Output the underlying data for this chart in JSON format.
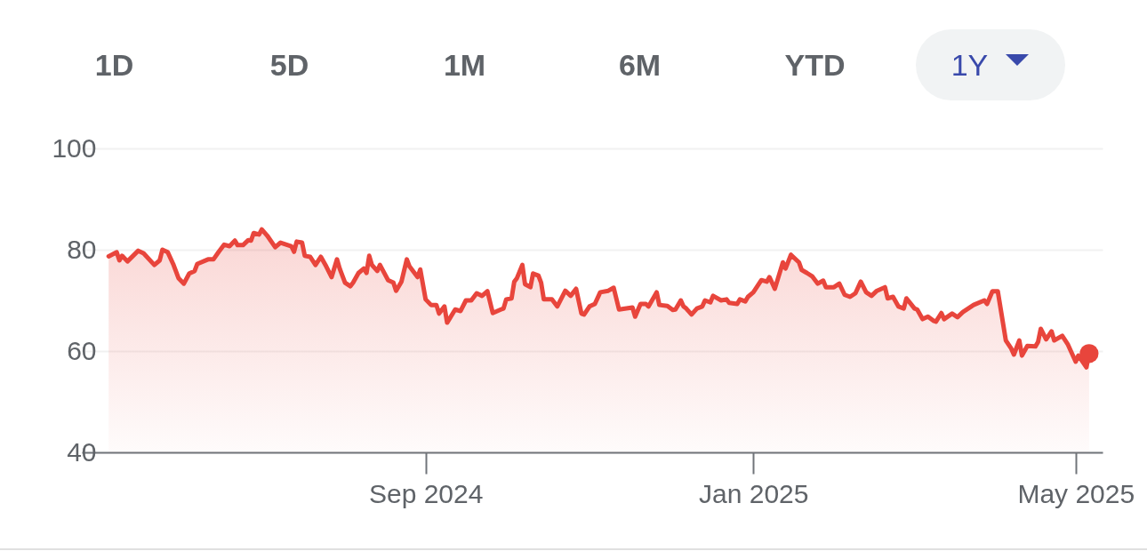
{
  "chart_data": {
    "type": "area",
    "annotations": [
      "1D",
      "5D",
      "1M",
      "6M",
      "YTD",
      "1Y"
    ],
    "x": [
      "2024-05-06",
      "2024-05-09",
      "2024-05-10",
      "2024-05-11",
      "2024-05-13",
      "2024-05-17",
      "2024-05-19",
      "2024-05-23",
      "2024-05-25",
      "2024-05-26",
      "2024-05-28",
      "2024-05-30",
      "2024-06-01",
      "2024-06-03",
      "2024-06-05",
      "2024-06-07",
      "2024-06-08",
      "2024-06-12",
      "2024-06-14",
      "2024-06-16",
      "2024-06-18",
      "2024-06-20",
      "2024-06-22",
      "2024-06-23",
      "2024-06-25",
      "2024-06-27",
      "2024-06-28",
      "2024-06-29",
      "2024-07-01",
      "2024-07-02",
      "2024-07-04",
      "2024-07-07",
      "2024-07-09",
      "2024-07-13",
      "2024-07-14",
      "2024-07-15",
      "2024-07-17",
      "2024-07-18",
      "2024-07-20",
      "2024-07-22",
      "2024-07-24",
      "2024-07-26",
      "2024-07-28",
      "2024-07-30",
      "2024-07-31",
      "2024-08-02",
      "2024-08-04",
      "2024-08-05",
      "2024-08-07",
      "2024-08-09",
      "2024-08-10",
      "2024-08-11",
      "2024-08-12",
      "2024-08-14",
      "2024-08-15",
      "2024-08-18",
      "2024-08-20",
      "2024-08-21",
      "2024-08-23",
      "2024-08-25",
      "2024-08-26",
      "2024-08-29",
      "2024-08-30",
      "2024-09-01",
      "2024-09-03",
      "2024-09-05",
      "2024-09-06",
      "2024-09-08",
      "2024-09-09",
      "2024-09-12",
      "2024-09-14",
      "2024-09-16",
      "2024-09-18",
      "2024-09-20",
      "2024-09-22",
      "2024-09-24",
      "2024-09-26",
      "2024-09-29",
      "2024-09-30",
      "2024-10-01",
      "2024-10-03",
      "2024-10-04",
      "2024-10-05",
      "2024-10-07",
      "2024-10-08",
      "2024-10-10",
      "2024-10-11",
      "2024-10-13",
      "2024-10-14",
      "2024-10-15",
      "2024-10-18",
      "2024-10-20",
      "2024-10-23",
      "2024-10-25",
      "2024-10-27",
      "2024-10-29",
      "2024-10-30",
      "2024-11-01",
      "2024-11-03",
      "2024-11-05",
      "2024-11-08",
      "2024-11-10",
      "2024-11-12",
      "2024-11-17",
      "2024-11-18",
      "2024-11-20",
      "2024-11-22",
      "2024-11-23",
      "2024-11-26",
      "2024-11-27",
      "2024-11-30",
      "2024-12-02",
      "2024-12-03",
      "2024-12-05",
      "2024-12-06",
      "2024-12-07",
      "2024-12-09",
      "2024-12-11",
      "2024-12-13",
      "2024-12-14",
      "2024-12-16",
      "2024-12-17",
      "2024-12-20",
      "2024-12-22",
      "2024-12-23",
      "2024-12-26",
      "2024-12-27",
      "2024-12-29",
      "2024-12-30",
      "2025-01-01",
      "2025-01-04",
      "2025-01-06",
      "2025-01-07",
      "2025-01-09",
      "2025-01-12",
      "2025-01-13",
      "2025-01-15",
      "2025-01-18",
      "2025-01-19",
      "2025-01-21",
      "2025-01-23",
      "2025-01-25",
      "2025-01-27",
      "2025-01-28",
      "2025-01-31",
      "2025-02-02",
      "2025-02-04",
      "2025-02-06",
      "2025-02-08",
      "2025-02-10",
      "2025-02-12",
      "2025-02-14",
      "2025-02-16",
      "2025-02-19",
      "2025-02-20",
      "2025-02-22",
      "2025-02-24",
      "2025-02-26",
      "2025-02-27",
      "2025-03-02",
      "2025-03-03",
      "2025-03-05",
      "2025-03-07",
      "2025-03-09",
      "2025-03-10",
      "2025-03-12",
      "2025-03-13",
      "2025-03-16",
      "2025-03-18",
      "2025-03-20",
      "2025-03-22",
      "2025-03-24",
      "2025-03-28",
      "2025-03-29",
      "2025-03-31",
      "2025-04-02",
      "2025-04-05",
      "2025-04-07",
      "2025-04-08",
      "2025-04-10",
      "2025-04-11",
      "2025-04-13",
      "2025-04-16",
      "2025-04-17",
      "2025-04-18",
      "2025-04-20",
      "2025-04-22",
      "2025-04-23",
      "2025-04-26",
      "2025-04-28",
      "2025-05-01",
      "2025-05-02",
      "2025-05-05",
      "2025-05-06"
    ],
    "series": [
      {
        "color": "#e8453c",
        "values": [
          78.7,
          79.5,
          77.9,
          78.8,
          77.7,
          79.8,
          79.3,
          77.0,
          77.9,
          80.0,
          79.5,
          77.2,
          74.4,
          73.3,
          75.3,
          75.8,
          77.2,
          78.1,
          78.1,
          79.6,
          81.0,
          80.7,
          81.8,
          80.9,
          80.9,
          81.9,
          81.8,
          83.3,
          83.0,
          84.0,
          82.8,
          80.5,
          81.4,
          80.7,
          79.6,
          81.6,
          81.4,
          78.8,
          78.6,
          77.0,
          78.6,
          76.7,
          74.6,
          78.1,
          76.3,
          73.5,
          72.8,
          73.5,
          75.4,
          76.3,
          75.4,
          78.8,
          77.0,
          75.8,
          77.0,
          74.0,
          73.5,
          71.9,
          73.7,
          78.1,
          76.7,
          74.6,
          76.1,
          70.2,
          69.1,
          69.1,
          67.4,
          68.8,
          65.6,
          68.2,
          67.9,
          70.0,
          70.0,
          71.4,
          70.9,
          71.8,
          67.5,
          68.2,
          68.4,
          70.2,
          70.4,
          73.7,
          74.4,
          77.0,
          73.2,
          72.6,
          75.3,
          74.9,
          73.5,
          70.2,
          70.2,
          68.8,
          71.9,
          70.9,
          72.3,
          67.4,
          67.2,
          68.8,
          69.3,
          71.6,
          71.9,
          72.5,
          68.2,
          68.6,
          66.8,
          69.3,
          69.3,
          68.8,
          71.6,
          69.1,
          68.9,
          68.1,
          68.2,
          70.0,
          68.8,
          68.4,
          67.2,
          68.4,
          68.8,
          70.0,
          69.6,
          70.9,
          70.0,
          70.2,
          69.5,
          69.3,
          70.2,
          69.8,
          70.7,
          71.6,
          74.0,
          73.7,
          74.6,
          72.3,
          77.5,
          76.3,
          79.0,
          77.5,
          76.0,
          75.4,
          74.7,
          73.3,
          73.9,
          72.6,
          72.6,
          73.3,
          71.1,
          70.7,
          71.4,
          73.7,
          71.6,
          70.9,
          71.9,
          72.6,
          70.4,
          70.7,
          68.8,
          68.4,
          70.4,
          68.4,
          68.2,
          66.3,
          66.8,
          66.0,
          65.8,
          67.5,
          66.3,
          67.4,
          66.7,
          67.7,
          68.4,
          69.1,
          70.0,
          69.3,
          71.8,
          71.8,
          62.1,
          60.5,
          59.3,
          62.1,
          59.1,
          61.0,
          60.9,
          61.8,
          64.4,
          62.3,
          63.9,
          62.1,
          63.0,
          61.4,
          57.9,
          59.1,
          56.8,
          59.5
        ]
      }
    ],
    "xlim": [
      "2024-04-26",
      "2025-05-11"
    ],
    "xticks": [
      {
        "value": "2024-09-01",
        "label": "Sep 2024"
      },
      {
        "value": "2025-01-01",
        "label": "Jan 2025"
      },
      {
        "value": "2025-05-01",
        "label": "May 2025"
      }
    ],
    "ylim": [
      40,
      100
    ],
    "yticks": [
      40,
      60,
      80,
      100
    ],
    "grid": "y"
  }
}
